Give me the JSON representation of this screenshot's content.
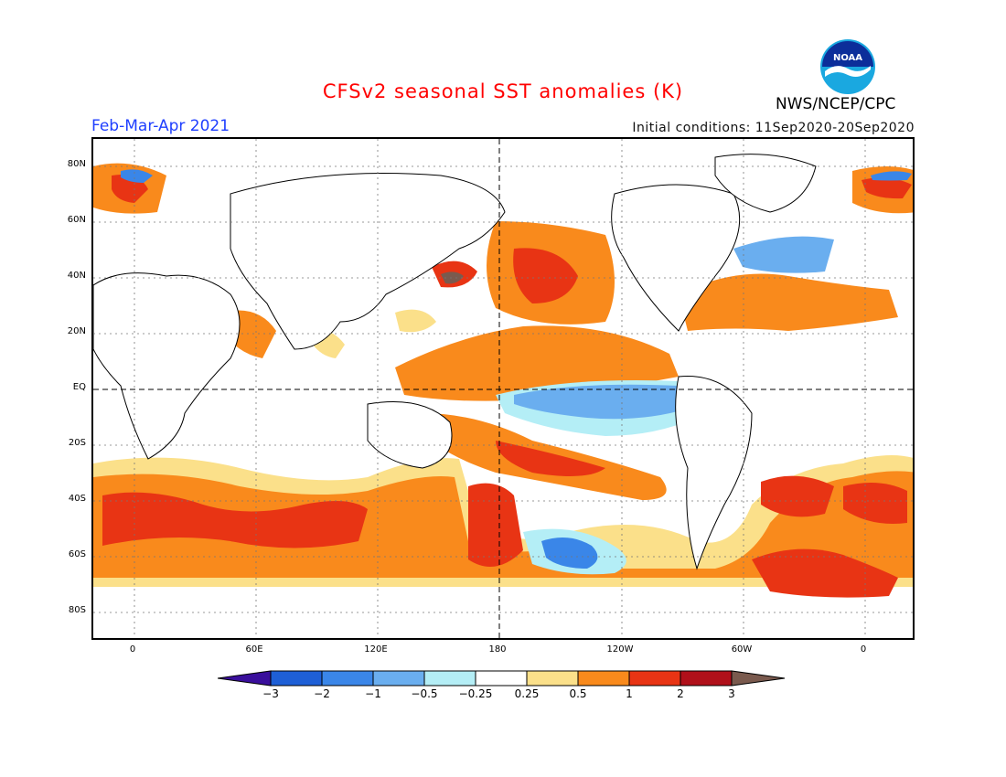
{
  "header": {
    "title": "CFSv2 seasonal SST anomalies (K)",
    "period": "Feb-Mar-Apr 2021",
    "initial_conditions": "Initial conditions: 11Sep2020-20Sep2020",
    "agency": "NWS/NCEP/CPC",
    "logo_text": "NOAA"
  },
  "axes": {
    "lat_labels": [
      "80N",
      "60N",
      "40N",
      "20N",
      "EQ",
      "20S",
      "40S",
      "60S",
      "80S"
    ],
    "lon_labels": [
      "0",
      "60E",
      "120E",
      "180",
      "120W",
      "60W",
      "0"
    ]
  },
  "colorbar": {
    "labels": [
      "-3",
      "-2",
      "-1",
      "-0.5",
      "-0.25",
      "0.25",
      "0.5",
      "1",
      "2",
      "3"
    ],
    "colors": [
      "#3a0f9c",
      "#1e5fd6",
      "#3a86e8",
      "#6aaeef",
      "#b4eef6",
      "#ffffff",
      "#fbe08a",
      "#f98a1c",
      "#e83414",
      "#b0101a",
      "#7a5a4e"
    ]
  },
  "map_colors": {
    "land": "#ffffff",
    "anom_pos_1": "#fbe08a",
    "anom_pos_2": "#f98a1c",
    "anom_pos_3": "#e83414",
    "anom_pos_4": "#b0101a",
    "anom_pos_5": "#7a5a4e",
    "anom_neg_1": "#b4eef6",
    "anom_neg_2": "#6aaeef",
    "anom_neg_3": "#3a86e8"
  }
}
